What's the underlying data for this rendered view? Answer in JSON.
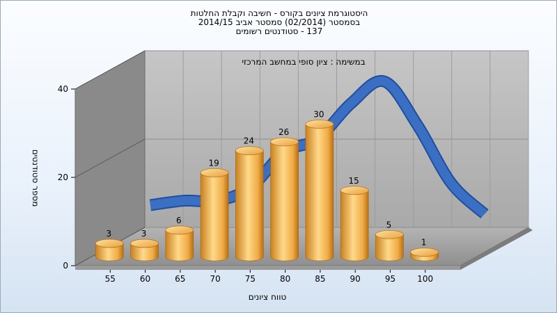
{
  "chart_data": {
    "type": "bar",
    "title_lines": [
      "היסטוגרמת ציונים בקורס - חשיבה וקבלת החלטות",
      "בסמסטר  (02/2014)  סמסטר אביב 2014/15",
      "137 - סטודנטים רשומים"
    ],
    "subtitle": "במשימה : ציון סופי במחשב המרכזי",
    "xlabel": "טווח ציונים",
    "ylabel": "מספר סטודנטים",
    "categories": [
      "55",
      "60",
      "65",
      "70",
      "75",
      "80",
      "85",
      "90",
      "95",
      "100"
    ],
    "values": [
      3,
      3,
      6,
      19,
      24,
      26,
      30,
      15,
      5,
      1
    ],
    "ylim": [
      0,
      40
    ],
    "yticks": [
      "0",
      "20",
      "40"
    ],
    "grid": true,
    "legend": "none",
    "curve": [
      6,
      7,
      7,
      10,
      18,
      21,
      29,
      34,
      24,
      11,
      4
    ],
    "colors": {
      "bar_light": "#ffd98a",
      "bar_mid": "#f2b04d",
      "bar_dark": "#b86f12",
      "curve": "#3a6fc4",
      "back_wall": "#b9b9b9",
      "left_wall": "#8a8a8a",
      "floor": "#a3a3a3"
    }
  }
}
